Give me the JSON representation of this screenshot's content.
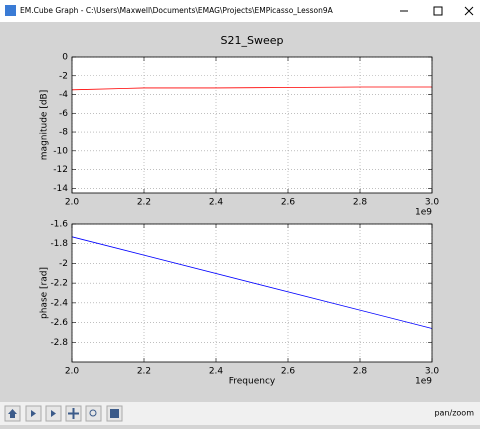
{
  "window": {
    "title": "EM.Cube Graph - C:\\Users\\Maxwell\\Documents\\EMAG\\Projects\\EMPicasso_Lesson9A"
  },
  "figure_title": "S21_Sweep",
  "chart_data": [
    {
      "type": "line",
      "ylabel": "magnitude [dB]",
      "x_offset_label": "1e9",
      "x": [
        2000000000,
        2200000000,
        2400000000,
        2600000000,
        2800000000,
        3000000000
      ],
      "values": [
        -3.5,
        -3.3,
        -3.3,
        -3.25,
        -3.2,
        -3.2
      ],
      "color": "#ff0000",
      "xlim": [
        2000000000,
        3000000000
      ],
      "xticks": [
        {
          "value": 2000000000,
          "label": "2.0"
        },
        {
          "value": 2200000000,
          "label": "2.2"
        },
        {
          "value": 2400000000,
          "label": "2.4"
        },
        {
          "value": 2600000000,
          "label": "2.6"
        },
        {
          "value": 2800000000,
          "label": "2.8"
        },
        {
          "value": 3000000000,
          "label": "3.0"
        }
      ],
      "ylim": [
        -14.5,
        0
      ],
      "yticks": [
        0,
        -2,
        -4,
        -6,
        -8,
        -10,
        -12,
        -14
      ],
      "grid": true
    },
    {
      "type": "line",
      "xlabel": "Frequency",
      "ylabel": "phase [rad]",
      "x_offset_label": "1e9",
      "x": [
        2000000000,
        3000000000
      ],
      "values": [
        -1.73,
        -2.66
      ],
      "color": "#0000ff",
      "xlim": [
        2000000000,
        3000000000
      ],
      "xticks": [
        {
          "value": 2000000000,
          "label": "2.0"
        },
        {
          "value": 2200000000,
          "label": "2.2"
        },
        {
          "value": 2400000000,
          "label": "2.4"
        },
        {
          "value": 2600000000,
          "label": "2.6"
        },
        {
          "value": 2800000000,
          "label": "2.8"
        },
        {
          "value": 3000000000,
          "label": "3.0"
        }
      ],
      "ylim": [
        -3.0,
        -1.6
      ],
      "yticks": [
        -1.6,
        -1.8,
        -2.0,
        -2.2,
        -2.4,
        -2.6,
        -2.8
      ],
      "grid": true
    }
  ],
  "toolbar": {
    "status": "pan/zoom"
  }
}
